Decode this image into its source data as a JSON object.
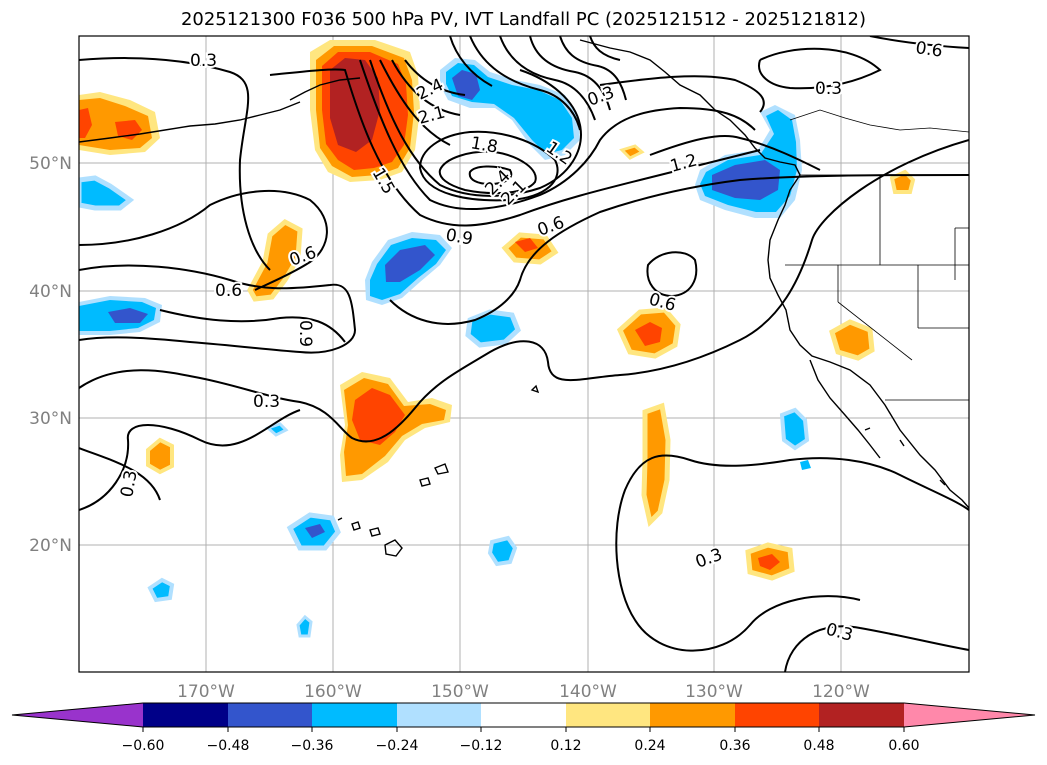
{
  "title": "2025121300 F036 500 hPa PV, IVT Landfall PC (2025121512 - 2025121812)",
  "colors": {
    "neg_extreme": "#9933cc",
    "neg_060": "#000088",
    "neg_048": "#3355cc",
    "neg_036": "#00bbff",
    "neg_024": "#b0e0ff",
    "zero": "#ffffff",
    "pos_012": "#ffe680",
    "pos_024": "#ff9900",
    "pos_036": "#ff4400",
    "pos_048": "#b22222",
    "pos_extreme": "#ff88aa",
    "grid": "#b0b0b0",
    "tick_text": "#808080"
  },
  "map": {
    "lat_labels": [
      "50°N",
      "40°N",
      "30°N",
      "20°N"
    ],
    "lon_labels": [
      "170°W",
      "160°W",
      "150°W",
      "140°W",
      "130°W",
      "120°W"
    ],
    "contour_labels": [
      "0.3",
      "0.3",
      "0.6",
      "0.3",
      "2.4",
      "2.1",
      "1.8",
      "1.2",
      "1.2",
      "2.4",
      "2.1",
      "1.5",
      "0.9",
      "0.6",
      "0.6",
      "0.6",
      "0.9",
      "0.6",
      "0.3",
      "0.3",
      "0.3",
      "0.3"
    ]
  },
  "colorbar": {
    "tick_labels": [
      "−0.60",
      "−0.48",
      "−0.36",
      "−0.24",
      "−0.12",
      "0.12",
      "0.24",
      "0.36",
      "0.48",
      "0.60"
    ]
  }
}
